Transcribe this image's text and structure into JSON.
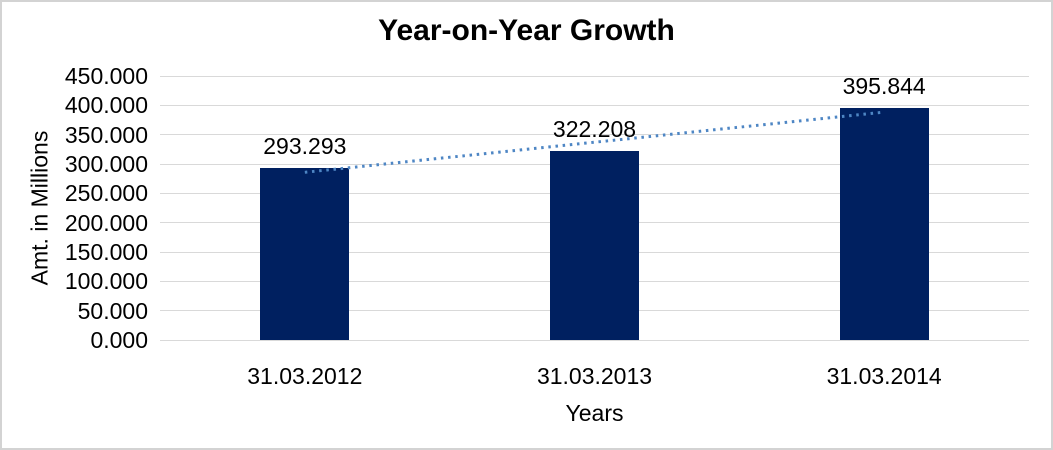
{
  "chart_data": {
    "type": "bar",
    "title": "Year-on-Year Growth",
    "xlabel": "Years",
    "ylabel": "Amt. in Millions",
    "categories": [
      "31.03.2012",
      "31.03.2013",
      "31.03.2014"
    ],
    "series": [
      {
        "name": "Amt. in Millions",
        "values": [
          293293,
          322208,
          395844
        ],
        "value_labels": [
          "293.293",
          "322.208",
          "395.844"
        ]
      }
    ],
    "ylim": [
      0,
      450000
    ],
    "ytick_step": 50000,
    "ytick_labels": [
      "450.000",
      "400.000",
      "350.000",
      "300.000",
      "250.000",
      "200.000",
      "150.000",
      "100.000",
      "50.000",
      "0.000"
    ],
    "grid": true,
    "legend": false,
    "trendline": {
      "type": "linear",
      "style": "dotted"
    },
    "colors": {
      "bar": "#002060",
      "gridline": "#d9d9d9",
      "trendline": "#4e86c4",
      "text": "#000000",
      "frame_border": "#d3d3d3",
      "background": "#ffffff"
    }
  }
}
